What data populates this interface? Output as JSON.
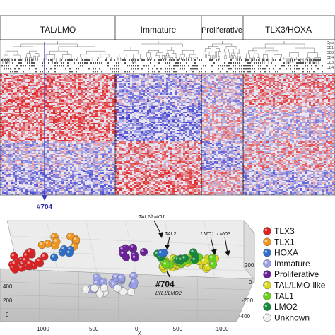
{
  "heatmap": {
    "groups": [
      "TAL/LMO",
      "Immature",
      "Proliferative",
      "TLX3/HOXA"
    ],
    "row_annotations": [
      "Cyto",
      "CD1",
      "CD8",
      "CD4",
      "CD3",
      "CD4"
    ],
    "marker_label": "#704",
    "colors": {
      "high": "#e02020",
      "low": "#3a3ad0",
      "neutral": "#ffffff"
    }
  },
  "pca": {
    "annotations": {
      "tal2_lmo1": "TAL2/LMO1",
      "tal2": "TAL2",
      "lmo1_lmo3": "LMO1  LMO3",
      "sample": "#704",
      "lyl1_lmo2": "LYL1/LMO2"
    },
    "axis_ticks": {
      "x": [
        "1000",
        "500",
        "0",
        "-500",
        "-1000"
      ],
      "x_axis_label": "X",
      "left": [
        "400",
        "200",
        "0"
      ],
      "right": [
        "200",
        "0",
        "-200",
        "-400"
      ]
    },
    "legend": [
      {
        "label": "TLX3",
        "color": "#e02020"
      },
      {
        "label": "TLX1",
        "color": "#f0961e"
      },
      {
        "label": "HOXA",
        "color": "#2e6fc8"
      },
      {
        "label": "Immature",
        "color": "#9aa0e8"
      },
      {
        "label": "Proliferative",
        "color": "#6a1e9a"
      },
      {
        "label": "TAL/LMO-like",
        "color": "#d8d820"
      },
      {
        "label": "TAL1",
        "color": "#6ad01e"
      },
      {
        "label": "LMO2",
        "color": "#138a3a"
      },
      {
        "label": "Unknown",
        "color": "#eeeeee"
      }
    ]
  }
}
